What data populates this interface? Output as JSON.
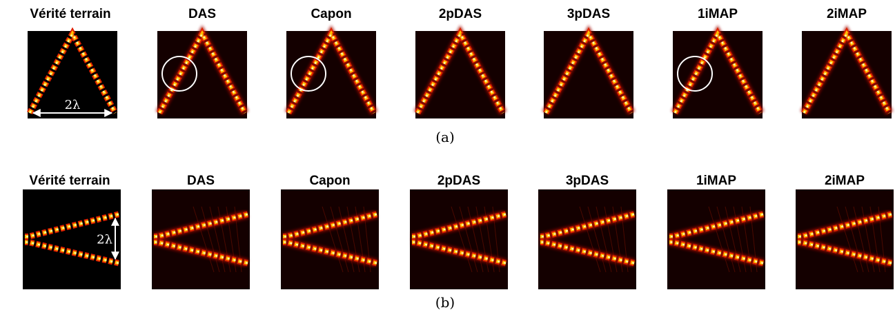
{
  "rows": [
    {
      "titles": [
        "Vérité terrain",
        "DAS",
        "Capon",
        "2pDAS",
        "3pDAS",
        "1iMAP",
        "2iMAP"
      ],
      "annotation": "2λ",
      "caption": "(a)"
    },
    {
      "titles": [
        "Vérité terrain",
        "DAS",
        "Capon",
        "2pDAS",
        "3pDAS",
        "1iMAP",
        "2iMAP"
      ],
      "annotation": "2λ",
      "caption": "(b)"
    }
  ]
}
